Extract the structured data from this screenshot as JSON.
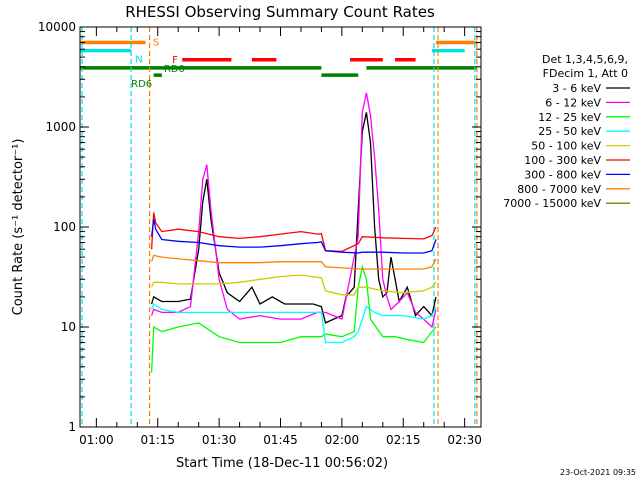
{
  "chart_data": {
    "type": "line",
    "title": "RHESSI Observing Summary Count Rates",
    "xlabel": "Start Time (18-Dec-11 00:56:02)",
    "ylabel": "Count Rate (s⁻¹ detector⁻¹)",
    "ylog": true,
    "ylim": [
      1,
      10000
    ],
    "xlim_minutes": [
      56,
      154
    ],
    "x_ticks": [
      {
        "label": "01:00",
        "minute": 60
      },
      {
        "label": "01:15",
        "minute": 75
      },
      {
        "label": "01:30",
        "minute": 90
      },
      {
        "label": "01:45",
        "minute": 105
      },
      {
        "label": "02:00",
        "minute": 120
      },
      {
        "label": "02:15",
        "minute": 135
      },
      {
        "label": "02:30",
        "minute": 150
      }
    ],
    "y_ticks": [
      {
        "label": "1",
        "value": 1
      },
      {
        "label": "10",
        "value": 10
      },
      {
        "label": "100",
        "value": 100
      },
      {
        "label": "1000",
        "value": 1000
      },
      {
        "label": "10000",
        "value": 10000
      }
    ],
    "legend": {
      "placement": "right",
      "header_line1": "Det 1,3,4,5,6,9,",
      "header_line2": "FDecim 1, Att 0"
    },
    "footer_timestamp": "23-Oct-2021 09:35",
    "flags": [
      {
        "label": "S",
        "color": "#ff8000",
        "value": 7000,
        "segments": [
          [
            56,
            72
          ],
          [
            143,
            153
          ]
        ]
      },
      {
        "label": "N",
        "color": "#00e0e0",
        "value": 5800,
        "segments": [
          [
            56,
            68.5
          ],
          [
            142,
            150
          ]
        ]
      },
      {
        "label": "F",
        "color": "#ff0000",
        "value": 4700,
        "segments": [
          [
            81,
            93
          ],
          [
            98,
            104
          ],
          [
            122,
            130
          ],
          [
            133,
            138
          ]
        ]
      },
      {
        "label": "RD0",
        "color": "#008000",
        "value": 3900,
        "segments": [
          [
            56,
            115
          ],
          [
            126,
            153
          ]
        ]
      },
      {
        "label": "RD6",
        "color": "#008000",
        "value": 3300,
        "segments": [
          [
            74,
            76
          ],
          [
            115,
            124
          ]
        ]
      }
    ],
    "vlines": [
      {
        "minute": 56.5,
        "color": "#00e0e0"
      },
      {
        "minute": 68.5,
        "color": "#00e0e0"
      },
      {
        "minute": 73,
        "color": "#ff8000"
      },
      {
        "minute": 142.5,
        "color": "#00e0e0"
      },
      {
        "minute": 143.5,
        "color": "#ff8000"
      },
      {
        "minute": 152.5,
        "color": "#00e0e0"
      },
      {
        "minute": 153,
        "color": "#ff8000"
      }
    ],
    "series": [
      {
        "name": "3 - 6 keV",
        "color": "#000000",
        "x": [
          73.5,
          74,
          76,
          80,
          83,
          85,
          86,
          87,
          88,
          90,
          92,
          95,
          98,
          100,
          103,
          106,
          110,
          113,
          115,
          116,
          118,
          120,
          121,
          123,
          125,
          126,
          127,
          128,
          129,
          130,
          131,
          132,
          133,
          134,
          136,
          138,
          140,
          142,
          143
        ],
        "y": [
          17,
          20,
          18,
          18,
          19,
          60,
          180,
          300,
          120,
          35,
          22,
          18,
          25,
          17,
          20,
          17,
          17,
          17,
          16,
          11,
          12,
          13,
          20,
          25,
          900,
          1400,
          700,
          100,
          30,
          20,
          22,
          50,
          30,
          18,
          25,
          13,
          16,
          13,
          20
        ]
      },
      {
        "name": "6 - 12 keV",
        "color": "#ff00ff",
        "x": [
          73.5,
          74,
          76,
          80,
          83,
          85,
          86,
          87,
          88,
          90,
          92,
          95,
          100,
          105,
          110,
          114,
          115,
          116,
          120,
          124,
          125,
          126,
          127,
          128,
          129,
          130,
          131,
          132,
          134,
          136,
          138,
          140,
          142,
          143
        ],
        "y": [
          13,
          15,
          14,
          14,
          16,
          90,
          300,
          420,
          150,
          30,
          15,
          12,
          13,
          12,
          12,
          14,
          14,
          14,
          12,
          80,
          1400,
          2200,
          1300,
          500,
          150,
          30,
          20,
          15,
          18,
          22,
          14,
          12,
          10,
          15
        ]
      },
      {
        "name": "12 - 25 keV",
        "color": "#00ff00",
        "x": [
          73.5,
          74,
          76,
          80,
          85,
          90,
          95,
          100,
          105,
          110,
          115,
          116,
          120,
          123,
          124,
          125,
          126,
          127,
          130,
          133,
          136,
          140,
          142,
          143
        ],
        "y": [
          3.5,
          10,
          9,
          10,
          11,
          8,
          7,
          7,
          7,
          8,
          8,
          8.5,
          8,
          9,
          25,
          40,
          30,
          12,
          8,
          8,
          7.5,
          7,
          9,
          10
        ]
      },
      {
        "name": "25 - 50 keV",
        "color": "#00ffff",
        "x": [
          73.5,
          74,
          76,
          80,
          85,
          90,
          95,
          100,
          105,
          110,
          115,
          116,
          120,
          123,
          124,
          126,
          128,
          130,
          135,
          140,
          142,
          143
        ],
        "y": [
          15,
          17,
          15,
          14,
          14,
          14,
          14,
          14,
          14,
          14,
          14,
          7,
          7,
          8,
          9,
          16,
          14,
          13,
          13,
          12,
          13,
          16
        ]
      },
      {
        "name": "50 - 100 keV",
        "color": "#cccc00",
        "x": [
          73.5,
          74,
          76,
          80,
          85,
          90,
          95,
          100,
          105,
          110,
          115,
          116,
          120,
          123,
          124,
          126,
          130,
          135,
          140,
          142,
          143
        ],
        "y": [
          25,
          28,
          28,
          27,
          27,
          27,
          28,
          30,
          32,
          33,
          31,
          23,
          21,
          21,
          25,
          25,
          23,
          22,
          23,
          25,
          28
        ]
      },
      {
        "name": "100 - 300 keV",
        "color": "#ff0000",
        "x": [
          73.5,
          74,
          74.5,
          76,
          80,
          85,
          90,
          95,
          100,
          105,
          110,
          114,
          115,
          116,
          120,
          124,
          125,
          130,
          135,
          140,
          142,
          143
        ],
        "y": [
          60,
          140,
          110,
          90,
          95,
          90,
          80,
          77,
          80,
          85,
          90,
          85,
          86,
          58,
          57,
          68,
          80,
          78,
          77,
          76,
          82,
          100
        ]
      },
      {
        "name": "300 - 800 keV",
        "color": "#0000ff",
        "x": [
          73.5,
          74,
          74.5,
          76,
          80,
          85,
          90,
          95,
          100,
          105,
          110,
          114,
          115,
          116,
          120,
          124,
          125,
          130,
          135,
          140,
          142,
          143
        ],
        "y": [
          80,
          120,
          95,
          75,
          72,
          70,
          65,
          63,
          63,
          65,
          68,
          70,
          71,
          58,
          56,
          55,
          56,
          56,
          55,
          55,
          58,
          75
        ]
      },
      {
        "name": "800 - 7000 keV",
        "color": "#ff8000",
        "x": [
          73.5,
          74,
          76,
          80,
          85,
          90,
          95,
          100,
          105,
          110,
          115,
          116,
          120,
          125,
          130,
          135,
          140,
          142,
          143
        ],
        "y": [
          45,
          52,
          50,
          48,
          46,
          44,
          44,
          44,
          45,
          45,
          45,
          40,
          39,
          38,
          38,
          38,
          38,
          40,
          48
        ]
      },
      {
        "name": "7000 - 15000 keV",
        "color": "#808000",
        "x": [],
        "y": []
      }
    ]
  }
}
